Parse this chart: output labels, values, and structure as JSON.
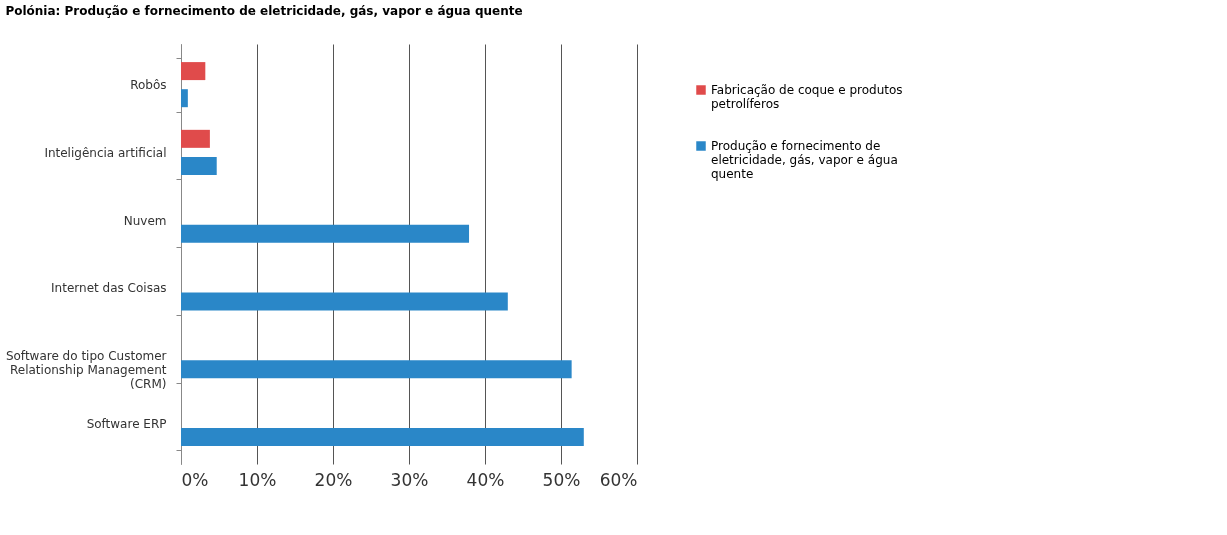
{
  "chart_data": {
    "type": "bar",
    "orientation": "horizontal",
    "title": "Polónia: Produção e fornecimento de eletricidade, gás, vapor e água quente",
    "categories": [
      "Robôs",
      "Inteligência artificial",
      "Nuvem",
      "Internet das Coisas",
      "Software do tipo Customer Relationship Management (CRM)",
      "Software ERP"
    ],
    "series": [
      {
        "name": "Fabricação de coque e produtos petrolíferos",
        "color": "#e04b4b",
        "values": [
          3.2,
          3.8,
          null,
          null,
          null,
          null
        ]
      },
      {
        "name": "Produção e fornecimento de eletricidade, gás, vapor e água quente",
        "color": "#2a87c8",
        "values": [
          0.9,
          4.7,
          37.9,
          43.0,
          51.4,
          53.0
        ]
      }
    ],
    "xlim": [
      0,
      60
    ],
    "xticks": [
      {
        "value": 0,
        "label": "0%"
      },
      {
        "value": 10,
        "label": "10%"
      },
      {
        "value": 20,
        "label": "20%"
      },
      {
        "value": 30,
        "label": "30%"
      },
      {
        "value": 40,
        "label": "40%"
      },
      {
        "value": 50,
        "label": "50%"
      },
      {
        "value": 60,
        "label": "60%"
      }
    ],
    "grid": "x",
    "legend": "right"
  }
}
